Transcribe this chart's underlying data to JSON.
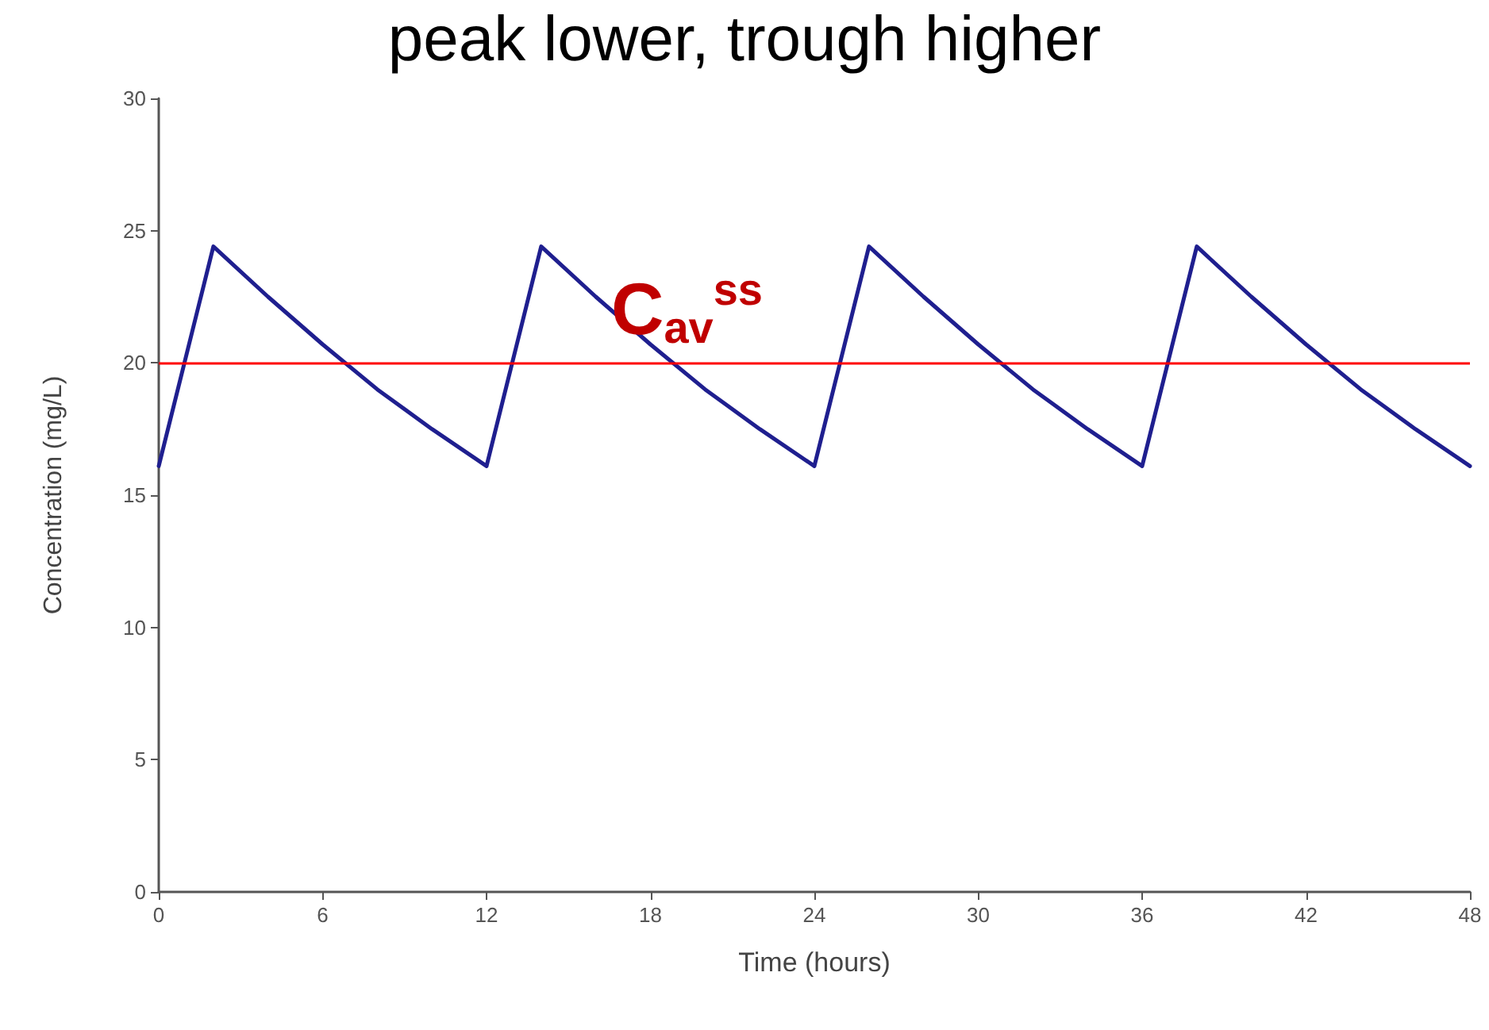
{
  "chart_data": {
    "type": "line",
    "title": "peak lower, trough higher",
    "xlabel": "Time (hours)",
    "ylabel": "Concentration (mg/L)",
    "x": [
      0,
      2,
      4,
      6,
      8,
      10,
      12,
      14,
      16,
      18,
      20,
      22,
      24,
      26,
      28,
      30,
      32,
      34,
      36,
      38,
      40,
      42,
      44,
      46,
      48
    ],
    "series": [
      {
        "color": "#1f1f8f",
        "values": [
          16.1,
          24.4,
          22.5,
          20.7,
          19.0,
          17.5,
          16.1,
          24.4,
          22.5,
          20.7,
          19.0,
          17.5,
          16.1,
          24.4,
          22.5,
          20.7,
          19.0,
          17.5,
          16.1,
          24.4,
          22.5,
          20.7,
          19.0,
          17.5,
          16.1
        ]
      }
    ],
    "xlim": [
      0,
      48
    ],
    "xticks": [
      0,
      6,
      12,
      18,
      24,
      30,
      36,
      42,
      48
    ],
    "ylim": [
      0,
      30
    ],
    "yticks": [
      0,
      5,
      10,
      15,
      20,
      25,
      30
    ],
    "ref_lines": [
      {
        "axis": "y",
        "value": 20,
        "label": "C$_{av}$$^{ss}$",
        "color": "#ff0000"
      }
    ],
    "grid": false,
    "marker": "none",
    "line_style": "solid"
  }
}
